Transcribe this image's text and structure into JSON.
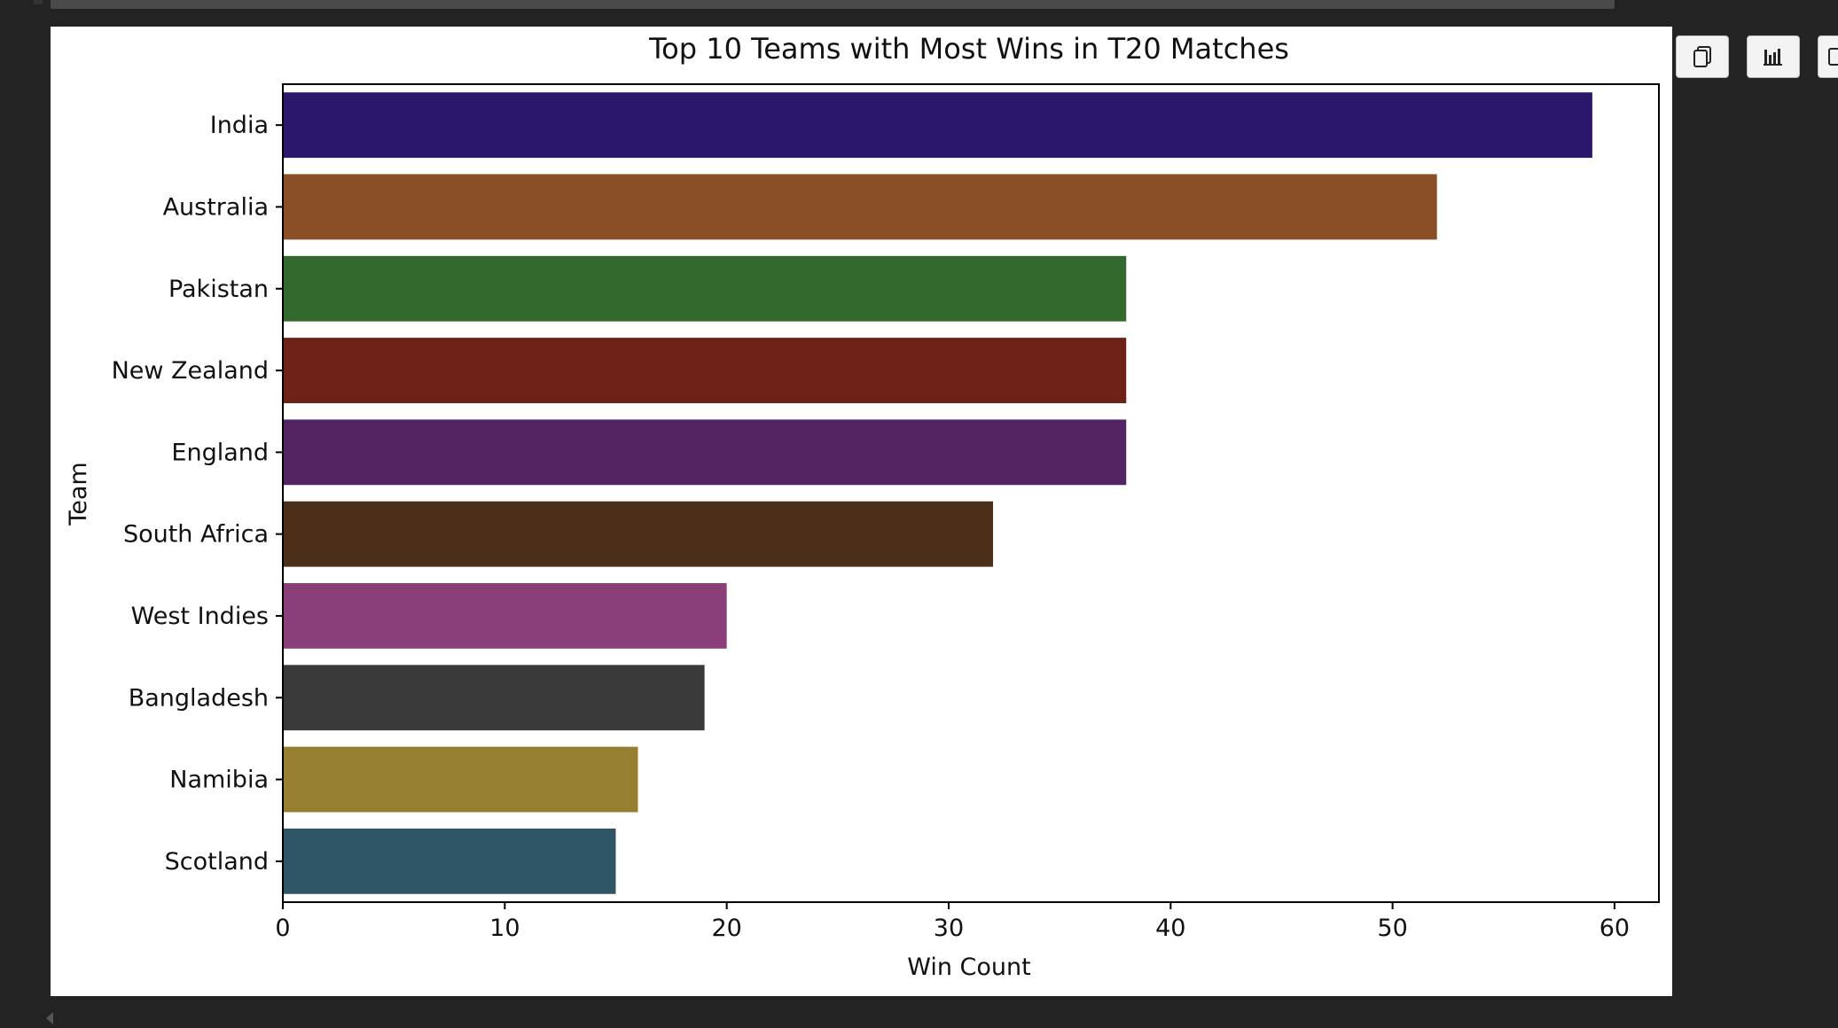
{
  "toolbar": {
    "buttons": [
      {
        "name": "copy-button",
        "icon": "copy-icon"
      },
      {
        "name": "chart-button",
        "icon": "bar-chart-icon"
      },
      {
        "name": "more-button",
        "icon": "square-icon"
      }
    ]
  },
  "chart_data": {
    "type": "bar",
    "orientation": "horizontal",
    "title": "Top 10 Teams with Most Wins in T20 Matches",
    "xlabel": "Win Count",
    "ylabel": "Team",
    "categories": [
      "India",
      "Australia",
      "Pakistan",
      "New Zealand",
      "England",
      "South Africa",
      "West Indies",
      "Bangladesh",
      "Namibia",
      "Scotland"
    ],
    "values": [
      59,
      52,
      38,
      38,
      38,
      32,
      20,
      19,
      16,
      15
    ],
    "colors": [
      "#2b186b",
      "#8b4f27",
      "#33692f",
      "#6c2216",
      "#532363",
      "#4b2f18",
      "#8a3f78",
      "#3a3a3a",
      "#967f30",
      "#2f5566"
    ],
    "xlim": [
      0,
      62
    ],
    "xticks": [
      0,
      10,
      20,
      30,
      40,
      50,
      60
    ],
    "grid": false,
    "legend": "none"
  }
}
